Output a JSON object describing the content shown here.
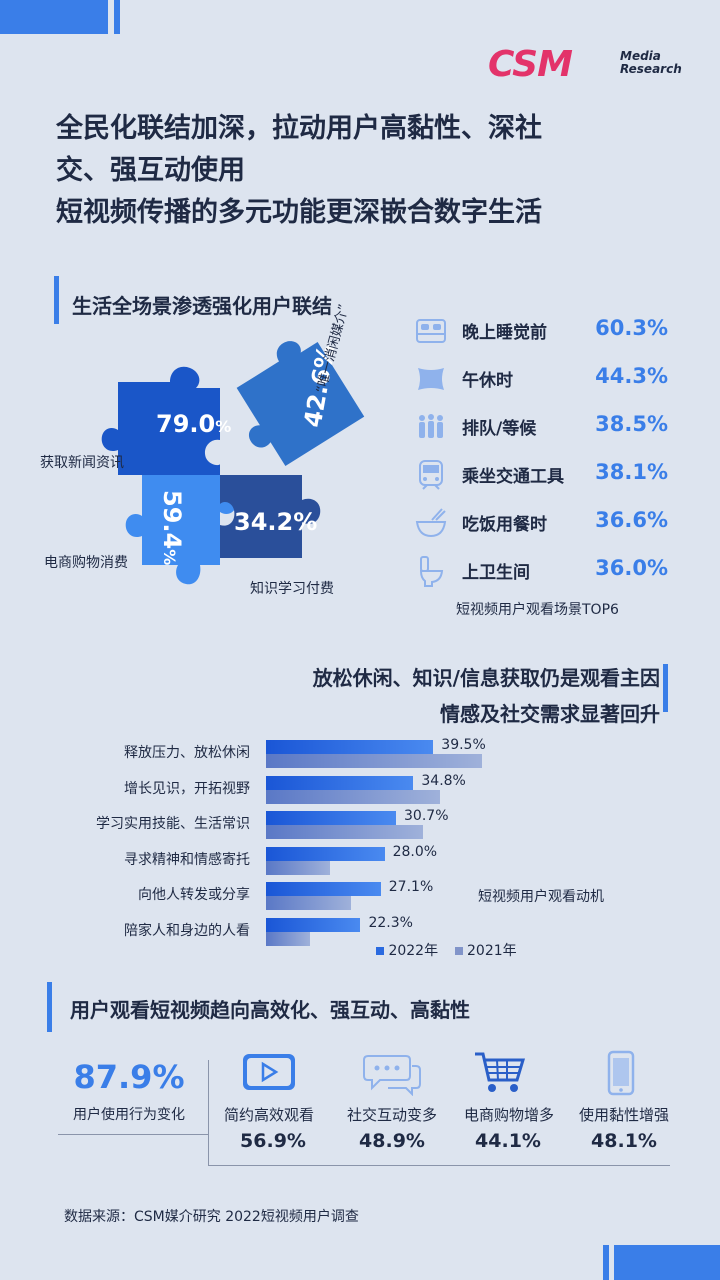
{
  "logo": {
    "brand": "CSM",
    "line1": "Media",
    "line2": "Research"
  },
  "headline": {
    "line1": "全民化联结加深，拉动用户高黏性、深社",
    "line2": "交、强互动使用",
    "line3": "短视频传播的多元功能更深嵌合数字生活"
  },
  "section1": {
    "title": "生活全场景渗透强化用户联结",
    "puzzle": [
      {
        "value": "79.0",
        "unit": "%",
        "label": "获取新闻资讯"
      },
      {
        "value": "59.4",
        "unit": "%",
        "label": "电商购物消费"
      },
      {
        "value": "34.2%",
        "label": "知识学习付费"
      },
      {
        "value": "42.6%",
        "label": "“唯一消闲媒介”"
      }
    ],
    "scenes": [
      {
        "icon": "bed-icon",
        "label": "晚上睡觉前",
        "pct": "60.3%"
      },
      {
        "icon": "pillow-icon",
        "label": "午休时",
        "pct": "44.3%"
      },
      {
        "icon": "queue-people-icon",
        "label": "排队/等候",
        "pct": "38.5%"
      },
      {
        "icon": "train-icon",
        "label": "乘坐交通工具",
        "pct": "38.1%"
      },
      {
        "icon": "bowl-icon",
        "label": "吃饭用餐时",
        "pct": "36.6%"
      },
      {
        "icon": "toilet-icon",
        "label": "上卫生间",
        "pct": "36.0%"
      }
    ],
    "scenes_caption": "短视频用户观看场景TOP6"
  },
  "section2": {
    "title_line1": "放松休闲、知识/信息获取仍是观看主因",
    "title_line2": "情感及社交需求显著回升",
    "caption": "短视频用户观看动机",
    "legend_2022": "2022年",
    "legend_2021": "2021年"
  },
  "chart_data": {
    "type": "bar",
    "categories": [
      "释放压力、放松休闲",
      "增长见识，开拓视野",
      "学习实用技能、生活常识",
      "寻求精神和情感寄托",
      "向他人转发或分享",
      "陪家人和身边的人看"
    ],
    "series": [
      {
        "name": "2022年",
        "values": [
          39.5,
          34.8,
          30.7,
          28.0,
          27.1,
          22.3
        ],
        "labels": [
          "39.5%",
          "34.8%",
          "30.7%",
          "28.0%",
          "27.1%",
          "22.3%"
        ]
      },
      {
        "name": "2021年",
        "values": [
          51.0,
          41.0,
          37.0,
          15.0,
          20.0,
          10.5
        ]
      }
    ],
    "xlim": [
      0,
      55
    ],
    "colors": {
      "2022年": "#2a6ae0",
      "2021年": "#8194c9"
    }
  },
  "section3": {
    "title": "用户观看短视频趋向高效化、强互动、高黏性",
    "big_pct": "87.9%",
    "big_label": "用户使用行为变化",
    "items": [
      {
        "icon": "play-icon",
        "label": "简约高效观看",
        "pct": "56.9%"
      },
      {
        "icon": "chat-icon",
        "label": "社交互动变多",
        "pct": "48.9%"
      },
      {
        "icon": "cart-icon",
        "label": "电商购物增多",
        "pct": "44.1%"
      },
      {
        "icon": "phone-icon",
        "label": "使用黏性增强",
        "pct": "48.1%"
      }
    ]
  },
  "source": "数据来源：CSM媒介研究 2022短视频用户调查",
  "colors": {
    "accent": "#3a7ee8",
    "brand": "#e3336a",
    "background": "#dde4ef",
    "text": "#1f2a44"
  }
}
